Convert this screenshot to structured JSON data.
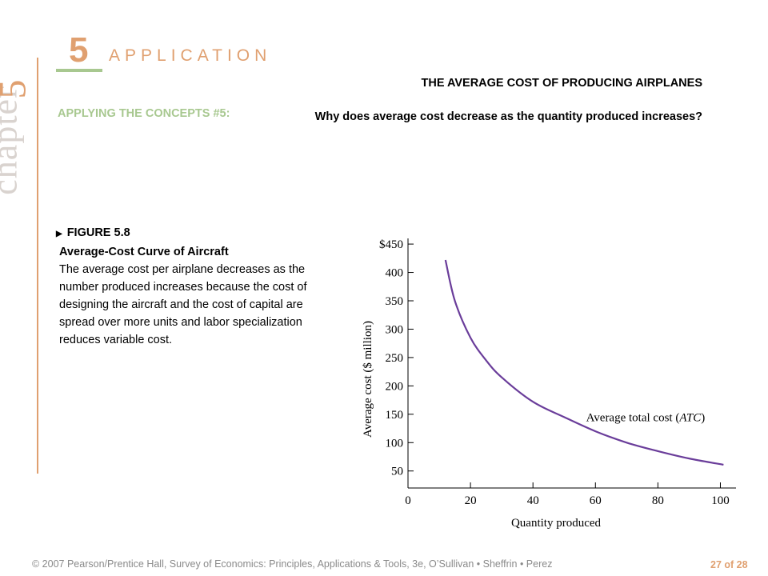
{
  "side": {
    "chapter_word": "chapter",
    "chapter_number": "5"
  },
  "header": {
    "application_number": "5",
    "application_word": "APPLICATION",
    "headline": "THE AVERAGE COST OF PRODUCING AIRPLANES",
    "concept_label": "APPLYING THE CONCEPTS #5:",
    "concept_question": "Why does average cost decrease as the quantity produced increases?"
  },
  "figure": {
    "number": "FIGURE 5.8",
    "title": "Average-Cost Curve of Aircraft",
    "caption": "The average cost per airplane decreases as the number produced increases because the cost of designing the aircraft and the cost of capital are spread over more units and labor specialization reduces variable cost."
  },
  "chart_data": {
    "type": "line",
    "xlabel": "Quantity produced",
    "ylabel": "Average cost ($ million)",
    "xlim": [
      0,
      105
    ],
    "ylim": [
      20,
      460
    ],
    "x_ticks": [
      0,
      20,
      40,
      60,
      80,
      100
    ],
    "x_tick_labels": [
      "0",
      "20",
      "40",
      "60",
      "80",
      "100"
    ],
    "y_ticks": [
      50,
      100,
      150,
      200,
      250,
      300,
      350,
      400,
      450
    ],
    "y_tick_labels": [
      "50",
      "100",
      "150",
      "200",
      "250",
      "300",
      "350",
      "400",
      "$450"
    ],
    "grid": false,
    "series": [
      {
        "name": "Average total cost (ATC)",
        "color": "#6a3d9a",
        "x": [
          12,
          15,
          20,
          25,
          30,
          40,
          50,
          60,
          70,
          80,
          90,
          101
        ],
        "y": [
          422,
          350,
          285,
          245,
          215,
          172,
          145,
          120,
          100,
          85,
          72,
          61
        ]
      }
    ],
    "annotations": [
      {
        "text_plain": "Average total cost (",
        "text_italic": "ATC",
        "text_end": ")"
      }
    ]
  },
  "footer": {
    "credit": "© 2007 Pearson/Prentice Hall, Survey of Economics: Principles, Applications & Tools, 3e, O’Sullivan • Sheffrin • Perez",
    "page": "27 of 28"
  },
  "colors": {
    "accent_orange": "#e0a070",
    "accent_green": "#a8c890",
    "curve": "#6a3d9a"
  }
}
